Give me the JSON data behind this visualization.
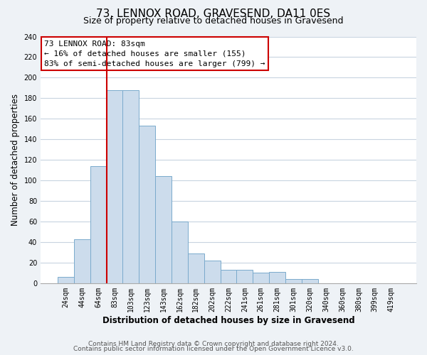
{
  "title": "73, LENNOX ROAD, GRAVESEND, DA11 0ES",
  "subtitle": "Size of property relative to detached houses in Gravesend",
  "xlabel": "Distribution of detached houses by size in Gravesend",
  "ylabel": "Number of detached properties",
  "bin_labels": [
    "24sqm",
    "44sqm",
    "64sqm",
    "83sqm",
    "103sqm",
    "123sqm",
    "143sqm",
    "162sqm",
    "182sqm",
    "202sqm",
    "222sqm",
    "241sqm",
    "261sqm",
    "281sqm",
    "301sqm",
    "320sqm",
    "340sqm",
    "360sqm",
    "380sqm",
    "399sqm",
    "419sqm"
  ],
  "bar_heights": [
    6,
    43,
    114,
    188,
    188,
    153,
    104,
    60,
    29,
    22,
    13,
    13,
    10,
    11,
    4,
    4,
    0,
    0,
    0,
    0,
    0
  ],
  "bar_color": "#ccdcec",
  "bar_edge_color": "#7aaacc",
  "vline_x_index": 3,
  "vline_color": "#cc0000",
  "annotation_title": "73 LENNOX ROAD: 83sqm",
  "annotation_line1": "← 16% of detached houses are smaller (155)",
  "annotation_line2": "83% of semi-detached houses are larger (799) →",
  "annotation_box_color": "#ffffff",
  "annotation_box_edge_color": "#cc0000",
  "ylim": [
    0,
    240
  ],
  "yticks": [
    0,
    20,
    40,
    60,
    80,
    100,
    120,
    140,
    160,
    180,
    200,
    220,
    240
  ],
  "footer_line1": "Contains HM Land Registry data © Crown copyright and database right 2024.",
  "footer_line2": "Contains public sector information licensed under the Open Government Licence v3.0.",
  "background_color": "#eef2f6",
  "plot_background_color": "#ffffff",
  "grid_color": "#c8d4e0",
  "title_fontsize": 11,
  "subtitle_fontsize": 9,
  "axis_label_fontsize": 8.5,
  "tick_fontsize": 7,
  "annotation_fontsize": 8,
  "footer_fontsize": 6.5
}
